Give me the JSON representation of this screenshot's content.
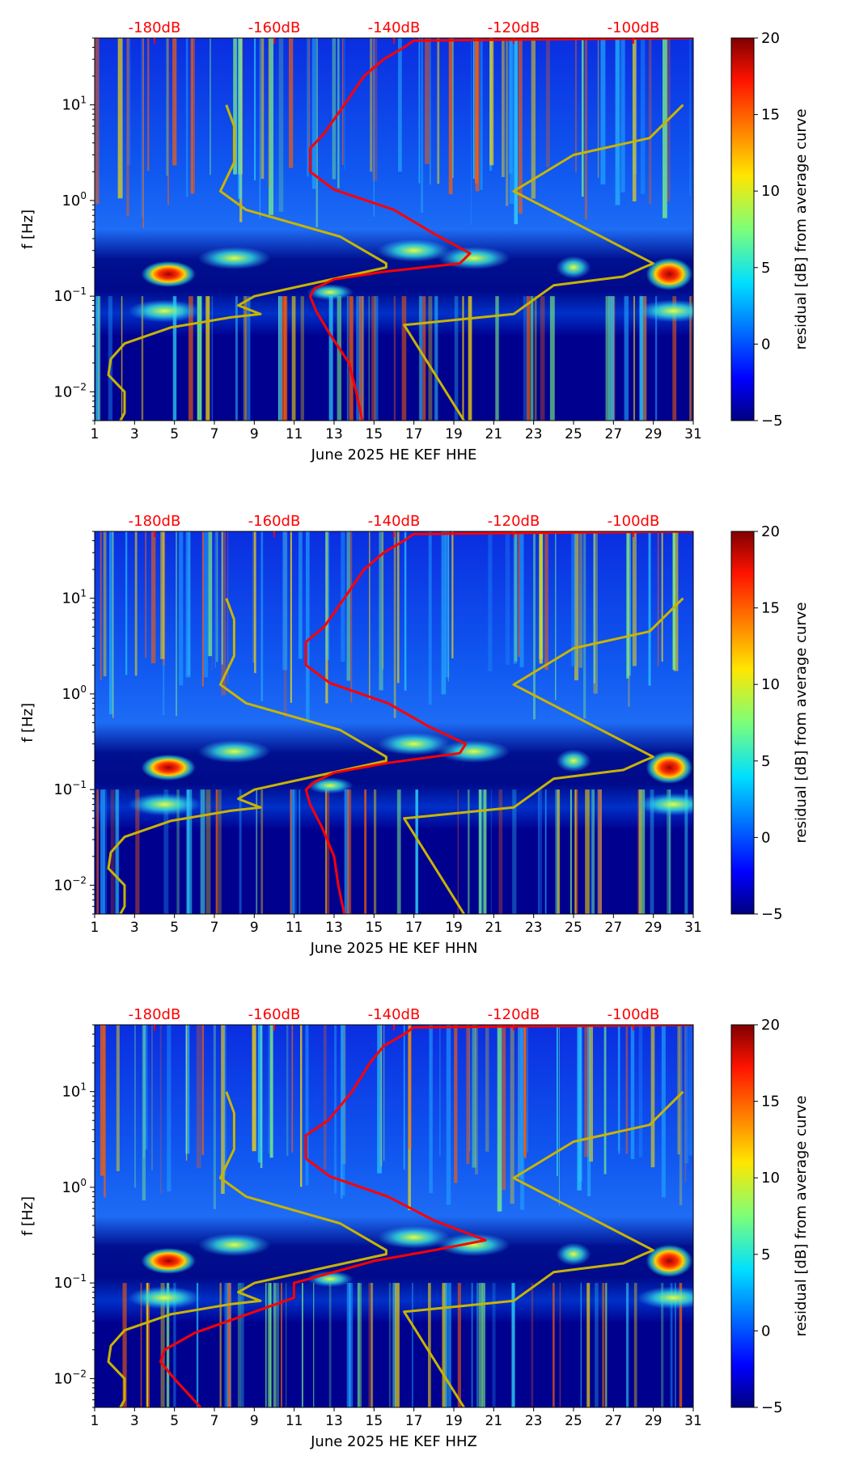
{
  "chart_data": [
    {
      "type": "heatmap",
      "title": "",
      "xlabel": "June 2025 HE KEF  HHE",
      "ylabel": "f [Hz]",
      "colorbar_label": "residual [dB] from average curve",
      "x_ticks": [
        "1",
        "3",
        "5",
        "7",
        "9",
        "11",
        "13",
        "15",
        "17",
        "19",
        "21",
        "23",
        "25",
        "27",
        "29",
        "31"
      ],
      "xlim": [
        1,
        31
      ],
      "ylim": [
        0.005,
        50
      ],
      "yscale": "log",
      "y_ticks": [
        "10^-2",
        "10^-1",
        "10^0",
        "10^1"
      ],
      "top_axis": {
        "ticks": [
          "-180dB",
          "-160dB",
          "-140dB",
          "-120dB",
          "-100dB"
        ],
        "xlim_db": [
          -190,
          -90
        ]
      },
      "colorbar": {
        "range": [
          -5,
          20
        ],
        "ticks": [
          "20",
          "15",
          "10",
          "5",
          "0",
          "−5"
        ]
      },
      "red_curve_db": [
        [
          -90,
          50
        ],
        [
          -136.7,
          47
        ],
        [
          -138.3,
          40
        ],
        [
          -141.7,
          30
        ],
        [
          -145,
          20
        ],
        [
          -148.3,
          10
        ],
        [
          -151.7,
          5
        ],
        [
          -154,
          3.5
        ],
        [
          -154,
          2
        ],
        [
          -150,
          1.3
        ],
        [
          -140,
          0.8
        ],
        [
          -133.3,
          0.45
        ],
        [
          -127.3,
          0.28
        ],
        [
          -129,
          0.22
        ],
        [
          -141.7,
          0.18
        ],
        [
          -150,
          0.15
        ],
        [
          -153.3,
          0.12
        ],
        [
          -154,
          0.1
        ],
        [
          -153,
          0.07
        ],
        [
          -150.7,
          0.04
        ],
        [
          -147.5,
          0.02
        ],
        [
          -146.3,
          0.01
        ],
        [
          -145.3,
          0.005
        ]
      ],
      "low_model_db": [
        [
          -168,
          10
        ],
        [
          -166.7,
          6
        ],
        [
          -166.7,
          2.5
        ],
        [
          -169,
          1.25
        ],
        [
          -164.7,
          0.8
        ],
        [
          -149,
          0.42
        ],
        [
          -141.3,
          0.22
        ],
        [
          -141.3,
          0.2
        ],
        [
          -163.3,
          0.1
        ],
        [
          -166,
          0.08
        ],
        [
          -162.3,
          0.065
        ],
        [
          -167.3,
          0.06
        ],
        [
          -177.3,
          0.047
        ],
        [
          -185,
          0.032
        ],
        [
          -187.3,
          0.022
        ],
        [
          -187.7,
          0.015
        ],
        [
          -185,
          0.01
        ],
        [
          -185,
          0.006
        ],
        [
          -185.7,
          0.005
        ]
      ],
      "high_model_db": [
        [
          -91.7,
          10
        ],
        [
          -97.3,
          4.5
        ],
        [
          -110,
          3
        ],
        [
          -120,
          1.25
        ],
        [
          -96.7,
          0.22
        ],
        [
          -98.3,
          0.2
        ],
        [
          -101.7,
          0.16
        ],
        [
          -113.3,
          0.13
        ],
        [
          -120,
          0.065
        ],
        [
          -138.3,
          0.05
        ],
        [
          -128.3,
          0.005
        ]
      ]
    },
    {
      "type": "heatmap",
      "title": "",
      "xlabel": "June 2025 HE KEF  HHN",
      "ylabel": "f [Hz]",
      "colorbar_label": "residual [dB] from average curve",
      "x_ticks": [
        "1",
        "3",
        "5",
        "7",
        "9",
        "11",
        "13",
        "15",
        "17",
        "19",
        "21",
        "23",
        "25",
        "27",
        "29",
        "31"
      ],
      "xlim": [
        1,
        31
      ],
      "ylim": [
        0.005,
        50
      ],
      "yscale": "log",
      "y_ticks": [
        "10^-2",
        "10^-1",
        "10^0",
        "10^1"
      ],
      "top_axis": {
        "ticks": [
          "-180dB",
          "-160dB",
          "-140dB",
          "-120dB",
          "-100dB"
        ],
        "xlim_db": [
          -190,
          -90
        ]
      },
      "colorbar": {
        "range": [
          -5,
          20
        ],
        "ticks": [
          "20",
          "15",
          "10",
          "5",
          "0",
          "−5"
        ]
      },
      "red_curve_db": [
        [
          -90,
          50
        ],
        [
          -136.7,
          47
        ],
        [
          -138.3,
          40
        ],
        [
          -141.7,
          30
        ],
        [
          -145,
          20
        ],
        [
          -148.3,
          10
        ],
        [
          -151.7,
          5
        ],
        [
          -154.7,
          3.5
        ],
        [
          -154.7,
          2
        ],
        [
          -150.7,
          1.3
        ],
        [
          -141,
          0.8
        ],
        [
          -134,
          0.45
        ],
        [
          -128,
          0.3
        ],
        [
          -129,
          0.24
        ],
        [
          -141,
          0.19
        ],
        [
          -150,
          0.15
        ],
        [
          -153.3,
          0.12
        ],
        [
          -154.7,
          0.1
        ],
        [
          -154,
          0.07
        ],
        [
          -152,
          0.04
        ],
        [
          -150,
          0.02
        ],
        [
          -149.3,
          0.01
        ],
        [
          -148.3,
          0.005
        ]
      ],
      "low_model_db": [
        [
          -168,
          10
        ],
        [
          -166.7,
          6
        ],
        [
          -166.7,
          2.5
        ],
        [
          -169,
          1.25
        ],
        [
          -164.7,
          0.8
        ],
        [
          -149,
          0.42
        ],
        [
          -141.3,
          0.22
        ],
        [
          -141.3,
          0.2
        ],
        [
          -163.3,
          0.1
        ],
        [
          -166,
          0.08
        ],
        [
          -162.3,
          0.065
        ],
        [
          -167.3,
          0.06
        ],
        [
          -177.3,
          0.047
        ],
        [
          -185,
          0.032
        ],
        [
          -187.3,
          0.022
        ],
        [
          -187.7,
          0.015
        ],
        [
          -185,
          0.01
        ],
        [
          -185,
          0.006
        ],
        [
          -185.7,
          0.005
        ]
      ],
      "high_model_db": [
        [
          -91.7,
          10
        ],
        [
          -97.3,
          4.5
        ],
        [
          -110,
          3
        ],
        [
          -120,
          1.25
        ],
        [
          -96.7,
          0.22
        ],
        [
          -98.3,
          0.2
        ],
        [
          -101.7,
          0.16
        ],
        [
          -113.3,
          0.13
        ],
        [
          -120,
          0.065
        ],
        [
          -138.3,
          0.05
        ],
        [
          -128.3,
          0.005
        ]
      ]
    },
    {
      "type": "heatmap",
      "title": "",
      "xlabel": "June 2025 HE KEF  HHZ",
      "ylabel": "f [Hz]",
      "colorbar_label": "residual [dB] from average curve",
      "x_ticks": [
        "1",
        "3",
        "5",
        "7",
        "9",
        "11",
        "13",
        "15",
        "17",
        "19",
        "21",
        "23",
        "25",
        "27",
        "29",
        "31"
      ],
      "xlim": [
        1,
        31
      ],
      "ylim": [
        0.005,
        50
      ],
      "yscale": "log",
      "y_ticks": [
        "10^-2",
        "10^-1",
        "10^0",
        "10^1"
      ],
      "top_axis": {
        "ticks": [
          "-180dB",
          "-160dB",
          "-140dB",
          "-120dB",
          "-100dB"
        ],
        "xlim_db": [
          -190,
          -90
        ]
      },
      "colorbar": {
        "range": [
          -5,
          20
        ],
        "ticks": [
          "20",
          "15",
          "10",
          "5",
          "0",
          "−5"
        ]
      },
      "red_curve_db": [
        [
          -90,
          50
        ],
        [
          -136.7,
          47
        ],
        [
          -138.3,
          40
        ],
        [
          -141.7,
          30
        ],
        [
          -144,
          20
        ],
        [
          -147,
          10
        ],
        [
          -151,
          5
        ],
        [
          -154.7,
          3.5
        ],
        [
          -154.7,
          2
        ],
        [
          -150.7,
          1.3
        ],
        [
          -141,
          0.8
        ],
        [
          -133.3,
          0.45
        ],
        [
          -124.7,
          0.28
        ],
        [
          -133.3,
          0.22
        ],
        [
          -143.3,
          0.17
        ],
        [
          -150,
          0.13
        ],
        [
          -156.7,
          0.1
        ],
        [
          -156.7,
          0.07
        ],
        [
          -163.3,
          0.05
        ],
        [
          -173.3,
          0.03
        ],
        [
          -178.3,
          0.02
        ],
        [
          -179,
          0.015
        ],
        [
          -176.7,
          0.01
        ],
        [
          -172.3,
          0.005
        ]
      ],
      "low_model_db": [
        [
          -168,
          10
        ],
        [
          -166.7,
          6
        ],
        [
          -166.7,
          2.5
        ],
        [
          -169,
          1.25
        ],
        [
          -164.7,
          0.8
        ],
        [
          -149,
          0.42
        ],
        [
          -141.3,
          0.22
        ],
        [
          -141.3,
          0.2
        ],
        [
          -163.3,
          0.1
        ],
        [
          -166,
          0.08
        ],
        [
          -162.3,
          0.065
        ],
        [
          -167.3,
          0.06
        ],
        [
          -177.3,
          0.047
        ],
        [
          -185,
          0.032
        ],
        [
          -187.3,
          0.022
        ],
        [
          -187.7,
          0.015
        ],
        [
          -185,
          0.01
        ],
        [
          -185,
          0.006
        ],
        [
          -185.7,
          0.005
        ]
      ],
      "high_model_db": [
        [
          -91.7,
          10
        ],
        [
          -97.3,
          4.5
        ],
        [
          -110,
          3
        ],
        [
          -120,
          1.25
        ],
        [
          -96.7,
          0.22
        ],
        [
          -98.3,
          0.2
        ],
        [
          -101.7,
          0.16
        ],
        [
          -113.3,
          0.13
        ],
        [
          -120,
          0.065
        ],
        [
          -138.3,
          0.05
        ],
        [
          -128.3,
          0.005
        ]
      ]
    }
  ],
  "colors": {
    "red_curve": "#ff0000",
    "model_curves": "#c8b400",
    "top_labels": "#ff0000"
  }
}
